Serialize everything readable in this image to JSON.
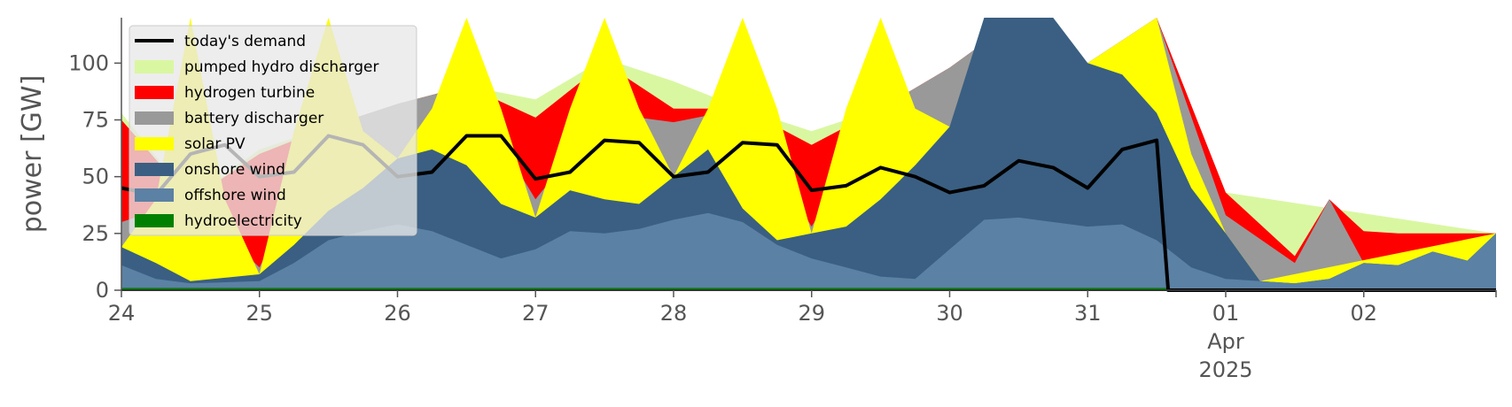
{
  "chart_data": {
    "type": "area",
    "title": "",
    "xlabel": "",
    "ylabel": "power [GW]",
    "ylim": [
      0,
      120
    ],
    "yticks": [
      0,
      25,
      50,
      75,
      100
    ],
    "xlim": [
      "2025-03-24T00:00",
      "2025-04-02T23:00"
    ],
    "x_tick_labels": [
      {
        "x": "2025-03-24",
        "lines": [
          "24"
        ]
      },
      {
        "x": "2025-03-25",
        "lines": [
          "25"
        ]
      },
      {
        "x": "2025-03-26",
        "lines": [
          "26"
        ]
      },
      {
        "x": "2025-03-27",
        "lines": [
          "27"
        ]
      },
      {
        "x": "2025-03-28",
        "lines": [
          "28"
        ]
      },
      {
        "x": "2025-03-29",
        "lines": [
          "29"
        ]
      },
      {
        "x": "2025-03-30",
        "lines": [
          "30"
        ]
      },
      {
        "x": "2025-03-31",
        "lines": [
          "31"
        ]
      },
      {
        "x": "2025-04-01",
        "lines": [
          "01",
          "Apr",
          "2025"
        ]
      },
      {
        "x": "2025-04-02",
        "lines": [
          "02"
        ]
      }
    ],
    "grid": false,
    "legend_position": "top-left",
    "stack_order": [
      "hydroelectricity",
      "offshore wind",
      "onshore wind",
      "solar PV",
      "battery discharger",
      "hydrogen turbine",
      "pumped hydro discharger"
    ],
    "series": [
      {
        "name": "hydroelectricity",
        "color": "#008000",
        "points": [
          [
            "2025-03-24T00:00",
            1
          ],
          [
            "2025-03-31T14:00",
            1
          ],
          [
            "2025-03-31T14:00",
            0
          ],
          [
            "2025-04-02T23:00",
            0
          ]
        ]
      },
      {
        "name": "offshore wind",
        "color": "#5b81a4",
        "points": [
          [
            "2025-03-24T00:00",
            11
          ],
          [
            "2025-03-24T06:00",
            5
          ],
          [
            "2025-03-24T12:00",
            3
          ],
          [
            "2025-03-25T00:00",
            4
          ],
          [
            "2025-03-25T06:00",
            12
          ],
          [
            "2025-03-25T12:00",
            22
          ],
          [
            "2025-03-25T18:00",
            26
          ],
          [
            "2025-03-26T00:00",
            29
          ],
          [
            "2025-03-26T06:00",
            26
          ],
          [
            "2025-03-26T12:00",
            20
          ],
          [
            "2025-03-26T18:00",
            14
          ],
          [
            "2025-03-27T00:00",
            18
          ],
          [
            "2025-03-27T06:00",
            26
          ],
          [
            "2025-03-27T12:00",
            25
          ],
          [
            "2025-03-27T18:00",
            27
          ],
          [
            "2025-03-28T00:00",
            31
          ],
          [
            "2025-03-28T06:00",
            34
          ],
          [
            "2025-03-28T12:00",
            30
          ],
          [
            "2025-03-28T18:00",
            20
          ],
          [
            "2025-03-29T00:00",
            14
          ],
          [
            "2025-03-29T06:00",
            10
          ],
          [
            "2025-03-29T12:00",
            6
          ],
          [
            "2025-03-29T18:00",
            5
          ],
          [
            "2025-03-30T00:00",
            18
          ],
          [
            "2025-03-30T06:00",
            31
          ],
          [
            "2025-03-30T12:00",
            32
          ],
          [
            "2025-03-30T18:00",
            30
          ],
          [
            "2025-03-31T00:00",
            28
          ],
          [
            "2025-03-31T06:00",
            29
          ],
          [
            "2025-03-31T12:00",
            22
          ],
          [
            "2025-03-31T18:00",
            10
          ],
          [
            "2025-04-01T00:00",
            5
          ],
          [
            "2025-04-01T06:00",
            4
          ],
          [
            "2025-04-01T12:00",
            3
          ],
          [
            "2025-04-01T18:00",
            5
          ],
          [
            "2025-04-02T00:00",
            12
          ],
          [
            "2025-04-02T06:00",
            11
          ],
          [
            "2025-04-02T12:00",
            17
          ],
          [
            "2025-04-02T18:00",
            13
          ],
          [
            "2025-04-02T23:00",
            25
          ]
        ]
      },
      {
        "name": "onshore wind",
        "color": "#3a5f82",
        "points": [
          [
            "2025-03-24T00:00",
            19
          ],
          [
            "2025-03-24T06:00",
            12
          ],
          [
            "2025-03-24T12:00",
            4
          ],
          [
            "2025-03-25T00:00",
            7
          ],
          [
            "2025-03-25T06:00",
            20
          ],
          [
            "2025-03-25T12:00",
            35
          ],
          [
            "2025-03-25T18:00",
            45
          ],
          [
            "2025-03-26T00:00",
            58
          ],
          [
            "2025-03-26T06:00",
            62
          ],
          [
            "2025-03-26T12:00",
            55
          ],
          [
            "2025-03-26T18:00",
            38
          ],
          [
            "2025-03-27T00:00",
            32
          ],
          [
            "2025-03-27T06:00",
            44
          ],
          [
            "2025-03-27T12:00",
            40
          ],
          [
            "2025-03-27T18:00",
            38
          ],
          [
            "2025-03-28T00:00",
            50
          ],
          [
            "2025-03-28T06:00",
            62
          ],
          [
            "2025-03-28T12:00",
            36
          ],
          [
            "2025-03-28T18:00",
            22
          ],
          [
            "2025-03-29T00:00",
            25
          ],
          [
            "2025-03-29T06:00",
            28
          ],
          [
            "2025-03-29T12:00",
            40
          ],
          [
            "2025-03-29T18:00",
            55
          ],
          [
            "2025-03-30T00:00",
            72
          ],
          [
            "2025-03-30T06:00",
            120
          ],
          [
            "2025-03-30T12:00",
            120
          ],
          [
            "2025-03-30T18:00",
            120
          ],
          [
            "2025-03-31T00:00",
            100
          ],
          [
            "2025-03-31T06:00",
            95
          ],
          [
            "2025-03-31T12:00",
            78
          ],
          [
            "2025-03-31T18:00",
            45
          ],
          [
            "2025-04-01T00:00",
            25
          ],
          [
            "2025-04-01T06:00",
            4
          ],
          [
            "2025-04-01T12:00",
            3
          ],
          [
            "2025-04-01T18:00",
            5
          ],
          [
            "2025-04-02T00:00",
            12
          ],
          [
            "2025-04-02T06:00",
            11
          ],
          [
            "2025-04-02T12:00",
            17
          ],
          [
            "2025-04-02T18:00",
            13
          ],
          [
            "2025-04-02T23:00",
            25
          ]
        ]
      },
      {
        "name": "solar PV",
        "color": "#ffff00",
        "points": [
          [
            "2025-03-24T00:00",
            19
          ],
          [
            "2025-03-24T06:00",
            40
          ],
          [
            "2025-03-24T12:00",
            120
          ],
          [
            "2025-03-24T18:00",
            40
          ],
          [
            "2025-03-25T00:00",
            7
          ],
          [
            "2025-03-25T06:00",
            70
          ],
          [
            "2025-03-25T12:00",
            120
          ],
          [
            "2025-03-25T18:00",
            70
          ],
          [
            "2025-03-26T00:00",
            58
          ],
          [
            "2025-03-26T06:00",
            80
          ],
          [
            "2025-03-26T12:00",
            120
          ],
          [
            "2025-03-26T18:00",
            80
          ],
          [
            "2025-03-27T00:00",
            32
          ],
          [
            "2025-03-27T06:00",
            80
          ],
          [
            "2025-03-27T12:00",
            120
          ],
          [
            "2025-03-27T18:00",
            80
          ],
          [
            "2025-03-28T00:00",
            50
          ],
          [
            "2025-03-28T06:00",
            80
          ],
          [
            "2025-03-28T12:00",
            120
          ],
          [
            "2025-03-28T18:00",
            80
          ],
          [
            "2025-03-29T00:00",
            25
          ],
          [
            "2025-03-29T06:00",
            80
          ],
          [
            "2025-03-29T12:00",
            120
          ],
          [
            "2025-03-29T18:00",
            80
          ],
          [
            "2025-03-30T00:00",
            72
          ],
          [
            "2025-03-30T12:00",
            120
          ],
          [
            "2025-03-31T00:00",
            100
          ],
          [
            "2025-03-31T12:00",
            120
          ],
          [
            "2025-03-31T18:00",
            60
          ],
          [
            "2025-04-01T00:00",
            25
          ],
          [
            "2025-04-01T06:00",
            4
          ],
          [
            "2025-04-02T23:00",
            25
          ]
        ]
      },
      {
        "name": "battery discharger",
        "color": "#999999",
        "points": [
          [
            "2025-03-24T00:00",
            30
          ],
          [
            "2025-03-24T12:00",
            40
          ],
          [
            "2025-03-25T00:00",
            10
          ],
          [
            "2025-03-25T12:00",
            72
          ],
          [
            "2025-03-26T00:00",
            82
          ],
          [
            "2025-03-26T12:00",
            90
          ],
          [
            "2025-03-27T00:00",
            40
          ],
          [
            "2025-03-27T12:00",
            78
          ],
          [
            "2025-03-28T00:00",
            74
          ],
          [
            "2025-03-28T12:00",
            80
          ],
          [
            "2025-03-29T00:00",
            28
          ],
          [
            "2025-03-29T12:00",
            80
          ],
          [
            "2025-03-30T00:00",
            98
          ],
          [
            "2025-03-30T12:00",
            120
          ],
          [
            "2025-03-31T00:00",
            100
          ],
          [
            "2025-03-31T12:00",
            120
          ],
          [
            "2025-04-01T00:00",
            33
          ],
          [
            "2025-04-01T12:00",
            12
          ],
          [
            "2025-04-01T18:00",
            40
          ],
          [
            "2025-04-02T00:00",
            12
          ],
          [
            "2025-04-02T23:00",
            25
          ]
        ]
      },
      {
        "name": "hydrogen turbine",
        "color": "#ff0000",
        "points": [
          [
            "2025-03-24T00:00",
            75
          ],
          [
            "2025-03-24T12:00",
            40
          ],
          [
            "2025-03-25T00:00",
            60
          ],
          [
            "2025-03-25T12:00",
            72
          ],
          [
            "2025-03-26T00:00",
            82
          ],
          [
            "2025-03-26T12:00",
            90
          ],
          [
            "2025-03-27T00:00",
            76
          ],
          [
            "2025-03-27T12:00",
            100
          ],
          [
            "2025-03-28T00:00",
            80
          ],
          [
            "2025-03-28T12:00",
            80
          ],
          [
            "2025-03-29T00:00",
            64
          ],
          [
            "2025-03-29T12:00",
            80
          ],
          [
            "2025-03-30T00:00",
            98
          ],
          [
            "2025-03-30T12:00",
            120
          ],
          [
            "2025-03-31T00:00",
            100
          ],
          [
            "2025-03-31T12:00",
            120
          ],
          [
            "2025-04-01T00:00",
            43
          ],
          [
            "2025-04-01T12:00",
            15
          ],
          [
            "2025-04-01T18:00",
            40
          ],
          [
            "2025-04-02T00:00",
            26
          ],
          [
            "2025-04-02T06:00",
            25
          ],
          [
            "2025-04-02T23:00",
            25
          ]
        ]
      },
      {
        "name": "pumped hydro discharger",
        "color": "#d9f7a1",
        "points": [
          [
            "2025-03-24T00:00",
            78
          ],
          [
            "2025-03-24T12:00",
            40
          ],
          [
            "2025-03-25T00:00",
            62
          ],
          [
            "2025-03-25T12:00",
            72
          ],
          [
            "2025-03-26T00:00",
            82
          ],
          [
            "2025-03-26T12:00",
            90
          ],
          [
            "2025-03-27T00:00",
            84
          ],
          [
            "2025-03-27T12:00",
            102
          ],
          [
            "2025-03-28T00:00",
            92
          ],
          [
            "2025-03-28T12:00",
            80
          ],
          [
            "2025-03-29T00:00",
            70
          ],
          [
            "2025-03-29T12:00",
            80
          ],
          [
            "2025-03-30T00:00",
            98
          ],
          [
            "2025-03-30T12:00",
            120
          ],
          [
            "2025-03-31T00:00",
            100
          ],
          [
            "2025-03-31T12:00",
            120
          ],
          [
            "2025-04-01T00:00",
            43
          ],
          [
            "2025-04-02T23:00",
            25
          ]
        ]
      },
      {
        "name": "today's demand",
        "color": "#000000",
        "kind": "line",
        "points": [
          [
            "2025-03-24T00:00",
            45
          ],
          [
            "2025-03-24T06:00",
            42
          ],
          [
            "2025-03-24T12:00",
            60
          ],
          [
            "2025-03-24T18:00",
            64
          ],
          [
            "2025-03-25T00:00",
            50
          ],
          [
            "2025-03-25T06:00",
            52
          ],
          [
            "2025-03-25T12:00",
            68
          ],
          [
            "2025-03-25T18:00",
            64
          ],
          [
            "2025-03-26T00:00",
            50
          ],
          [
            "2025-03-26T06:00",
            52
          ],
          [
            "2025-03-26T12:00",
            68
          ],
          [
            "2025-03-26T18:00",
            68
          ],
          [
            "2025-03-27T00:00",
            49
          ],
          [
            "2025-03-27T06:00",
            52
          ],
          [
            "2025-03-27T12:00",
            66
          ],
          [
            "2025-03-27T18:00",
            65
          ],
          [
            "2025-03-28T00:00",
            50
          ],
          [
            "2025-03-28T06:00",
            52
          ],
          [
            "2025-03-28T12:00",
            65
          ],
          [
            "2025-03-28T18:00",
            64
          ],
          [
            "2025-03-29T00:00",
            44
          ],
          [
            "2025-03-29T06:00",
            46
          ],
          [
            "2025-03-29T12:00",
            54
          ],
          [
            "2025-03-29T18:00",
            50
          ],
          [
            "2025-03-30T00:00",
            43
          ],
          [
            "2025-03-30T06:00",
            46
          ],
          [
            "2025-03-30T12:00",
            57
          ],
          [
            "2025-03-30T18:00",
            54
          ],
          [
            "2025-03-31T00:00",
            45
          ],
          [
            "2025-03-31T06:00",
            62
          ],
          [
            "2025-03-31T12:00",
            66
          ],
          [
            "2025-03-31T14:00",
            0
          ],
          [
            "2025-04-02T23:00",
            0
          ]
        ]
      }
    ]
  }
}
